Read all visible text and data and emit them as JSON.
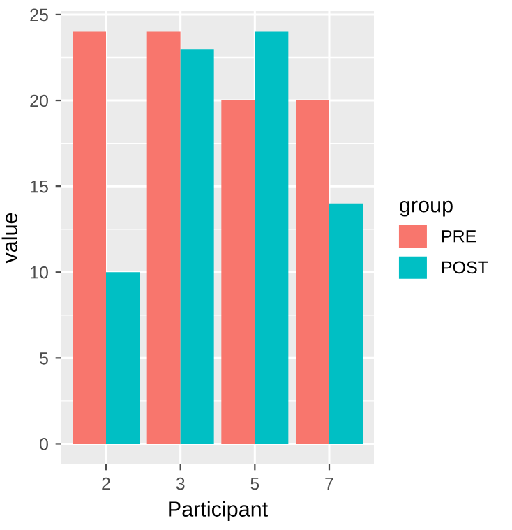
{
  "chart_data": {
    "type": "bar",
    "xlabel": "Participant",
    "ylabel": "value",
    "legend_title": "group",
    "categories": [
      "2",
      "3",
      "5",
      "7"
    ],
    "series": [
      {
        "name": "PRE",
        "color": "#f8766d",
        "values": [
          24,
          24,
          20,
          20
        ]
      },
      {
        "name": "POST",
        "color": "#00bfc4",
        "values": [
          10,
          23,
          24,
          14
        ]
      }
    ],
    "ylim": [
      -1.2,
      25.2
    ],
    "yticks": [
      0,
      5,
      10,
      15,
      20,
      25
    ],
    "grid": true,
    "legend": "right"
  }
}
